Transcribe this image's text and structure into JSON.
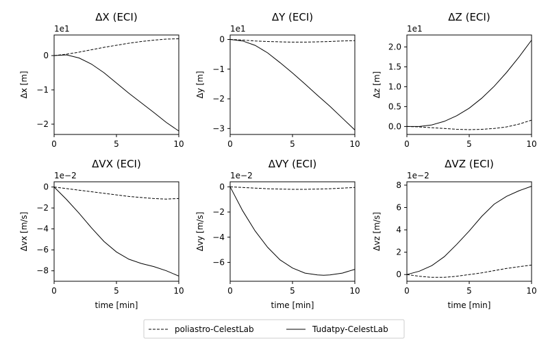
{
  "chart_data": [
    {
      "type": "line",
      "title": "ΔX (ECI)",
      "xlabel": "",
      "ylabel": "Δx [m]",
      "offset_label": "1e1",
      "xlim": [
        0,
        10
      ],
      "ylim": [
        -2.3,
        0.6
      ],
      "x_ticks": [
        0,
        5,
        10
      ],
      "x_tick_labels": [
        "0",
        "5",
        "10"
      ],
      "y_ticks": [
        -2,
        -1,
        0
      ],
      "y_tick_labels": [
        "−2",
        "−1",
        "0"
      ],
      "series": [
        {
          "name": "poliastro-CelestLab",
          "style": "dashed",
          "x": [
            0,
            1,
            2,
            3,
            4,
            5,
            6,
            7,
            8,
            9,
            10
          ],
          "y": [
            0,
            0.04,
            0.1,
            0.17,
            0.24,
            0.3,
            0.36,
            0.41,
            0.45,
            0.48,
            0.49
          ]
        },
        {
          "name": "Tudatpy-CelestLab",
          "style": "solid",
          "x": [
            0,
            1,
            2,
            3,
            4,
            5,
            6,
            7,
            8,
            9,
            10
          ],
          "y": [
            0,
            0.02,
            -0.07,
            -0.25,
            -0.5,
            -0.8,
            -1.1,
            -1.38,
            -1.66,
            -1.95,
            -2.2
          ]
        }
      ]
    },
    {
      "type": "line",
      "title": "ΔY (ECI)",
      "xlabel": "",
      "ylabel": "Δy [m]",
      "offset_label": "1e1",
      "xlim": [
        0,
        10
      ],
      "ylim": [
        -3.2,
        0.15
      ],
      "x_ticks": [
        0,
        5,
        10
      ],
      "x_tick_labels": [
        "0",
        "5",
        "10"
      ],
      "y_ticks": [
        -3,
        -2,
        -1,
        0
      ],
      "y_tick_labels": [
        "−3",
        "−2",
        "−1",
        "0"
      ],
      "series": [
        {
          "name": "poliastro-CelestLab",
          "style": "dashed",
          "x": [
            0,
            1,
            2,
            3,
            4,
            5,
            6,
            7,
            8,
            9,
            10
          ],
          "y": [
            0,
            -0.02,
            -0.05,
            -0.07,
            -0.08,
            -0.09,
            -0.09,
            -0.08,
            -0.07,
            -0.05,
            -0.04
          ]
        },
        {
          "name": "Tudatpy-CelestLab",
          "style": "solid",
          "x": [
            0,
            1,
            2,
            3,
            4,
            5,
            6,
            7,
            8,
            9,
            10
          ],
          "y": [
            0,
            -0.05,
            -0.2,
            -0.45,
            -0.78,
            -1.13,
            -1.5,
            -1.88,
            -2.25,
            -2.65,
            -3.05
          ]
        }
      ]
    },
    {
      "type": "line",
      "title": "ΔZ (ECI)",
      "xlabel": "",
      "ylabel": "Δz [m]",
      "offset_label": "1e1",
      "xlim": [
        0,
        10
      ],
      "ylim": [
        -0.2,
        2.3
      ],
      "x_ticks": [
        0,
        5,
        10
      ],
      "x_tick_labels": [
        "0",
        "5",
        "10"
      ],
      "y_ticks": [
        0,
        0.5,
        1.0,
        1.5,
        2.0
      ],
      "y_tick_labels": [
        "0.0",
        "0.5",
        "1.0",
        "1.5",
        "2.0"
      ],
      "series": [
        {
          "name": "poliastro-CelestLab",
          "style": "dashed",
          "x": [
            0,
            1,
            2,
            3,
            4,
            5,
            6,
            7,
            8,
            9,
            10
          ],
          "y": [
            0,
            -0.01,
            -0.03,
            -0.05,
            -0.07,
            -0.08,
            -0.07,
            -0.05,
            -0.01,
            0.06,
            0.16
          ]
        },
        {
          "name": "Tudatpy-CelestLab",
          "style": "solid",
          "x": [
            0,
            1,
            2,
            3,
            4,
            5,
            6,
            7,
            8,
            9,
            10
          ],
          "y": [
            0,
            0.0,
            0.04,
            0.13,
            0.27,
            0.46,
            0.71,
            1.01,
            1.36,
            1.75,
            2.17
          ]
        }
      ]
    },
    {
      "type": "line",
      "title": "ΔVX (ECI)",
      "xlabel": "time [min]",
      "ylabel": "Δvx [m/s]",
      "offset_label": "1e−2",
      "xlim": [
        0,
        10
      ],
      "ylim": [
        -9.0,
        0.5
      ],
      "x_ticks": [
        0,
        5,
        10
      ],
      "x_tick_labels": [
        "0",
        "5",
        "10"
      ],
      "y_ticks": [
        -8,
        -6,
        -4,
        -2,
        0
      ],
      "y_tick_labels": [
        "−8",
        "−6",
        "−4",
        "−2",
        "0"
      ],
      "series": [
        {
          "name": "poliastro-CelestLab",
          "style": "dashed",
          "x": [
            0,
            1,
            2,
            3,
            4,
            5,
            6,
            7,
            8,
            9,
            10
          ],
          "y": [
            0,
            -0.15,
            -0.3,
            -0.45,
            -0.6,
            -0.75,
            -0.9,
            -1.0,
            -1.1,
            -1.15,
            -1.1
          ]
        },
        {
          "name": "Tudatpy-CelestLab",
          "style": "solid",
          "x": [
            0,
            1,
            2,
            3,
            4,
            5,
            6,
            7,
            8,
            9,
            10
          ],
          "y": [
            0,
            -1.2,
            -2.5,
            -3.9,
            -5.2,
            -6.2,
            -6.9,
            -7.3,
            -7.6,
            -8.0,
            -8.5
          ]
        }
      ]
    },
    {
      "type": "line",
      "title": "ΔVY (ECI)",
      "xlabel": "time [min]",
      "ylabel": "Δvy [m/s]",
      "offset_label": "1e−2",
      "xlim": [
        0,
        10
      ],
      "ylim": [
        -7.5,
        0.4
      ],
      "x_ticks": [
        0,
        5,
        10
      ],
      "x_tick_labels": [
        "0",
        "5",
        "10"
      ],
      "y_ticks": [
        -6,
        -4,
        -2,
        0
      ],
      "y_tick_labels": [
        "−6",
        "−4",
        "−2",
        "0"
      ],
      "series": [
        {
          "name": "poliastro-CelestLab",
          "style": "dashed",
          "x": [
            0,
            1,
            2,
            3,
            4,
            5,
            6,
            7,
            8,
            9,
            10
          ],
          "y": [
            0,
            -0.05,
            -0.1,
            -0.15,
            -0.18,
            -0.2,
            -0.2,
            -0.18,
            -0.15,
            -0.1,
            -0.05
          ]
        },
        {
          "name": "Tudatpy-CelestLab",
          "style": "solid",
          "x": [
            0,
            1,
            2,
            3,
            4,
            5,
            6,
            7,
            7.5,
            8,
            9,
            10
          ],
          "y": [
            0,
            -1.9,
            -3.5,
            -4.8,
            -5.8,
            -6.45,
            -6.85,
            -7.0,
            -7.02,
            -7.0,
            -6.85,
            -6.55
          ]
        }
      ]
    },
    {
      "type": "line",
      "title": "ΔVZ (ECI)",
      "xlabel": "time [min]",
      "ylabel": "Δvz [m/s]",
      "offset_label": "1e−2",
      "xlim": [
        0,
        10
      ],
      "ylim": [
        -0.6,
        8.3
      ],
      "x_ticks": [
        0,
        5,
        10
      ],
      "x_tick_labels": [
        "0",
        "5",
        "10"
      ],
      "y_ticks": [
        0,
        2,
        4,
        6,
        8
      ],
      "y_tick_labels": [
        "0",
        "2",
        "4",
        "6",
        "8"
      ],
      "series": [
        {
          "name": "poliastro-CelestLab",
          "style": "dashed",
          "x": [
            0,
            1,
            2,
            3,
            4,
            5,
            6,
            7,
            8,
            9,
            10
          ],
          "y": [
            0,
            -0.15,
            -0.25,
            -0.25,
            -0.15,
            0.0,
            0.15,
            0.35,
            0.55,
            0.7,
            0.85
          ]
        },
        {
          "name": "Tudatpy-CelestLab",
          "style": "solid",
          "x": [
            0,
            1,
            2,
            3,
            4,
            5,
            6,
            7,
            8,
            9,
            10
          ],
          "y": [
            0,
            0.3,
            0.8,
            1.6,
            2.7,
            3.9,
            5.2,
            6.3,
            7.0,
            7.5,
            7.9
          ]
        }
      ]
    }
  ],
  "legend": {
    "entries": [
      {
        "label": "poliastro-CelestLab",
        "style": "dashed"
      },
      {
        "label": "Tudatpy-CelestLab",
        "style": "solid"
      }
    ],
    "placement": "bottom-center"
  }
}
